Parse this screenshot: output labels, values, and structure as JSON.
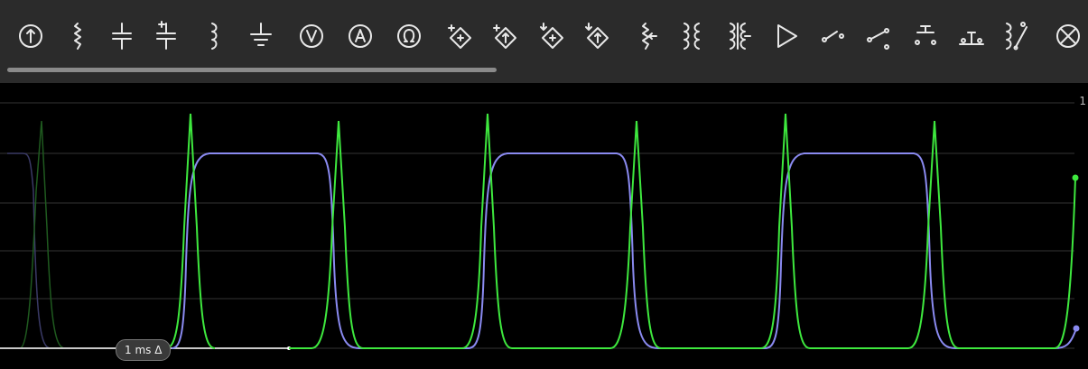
{
  "toolbar": {
    "icons": [
      "current-source-icon",
      "resistor-icon",
      "capacitor-icon",
      "polarized-capacitor-icon",
      "inductor-icon",
      "ground-icon",
      "voltmeter-icon",
      "ammeter-icon",
      "ohmmeter-icon",
      "vcvs-icon",
      "vccs-icon",
      "ccvs-icon",
      "cccs-icon",
      "potentiometer-icon",
      "transformer-icon",
      "transformer-alt-icon",
      "opamp-icon",
      "switch-spst-icon",
      "switch-spdt-icon",
      "pushbutton-no-icon",
      "pushbutton-nc-icon",
      "relay-icon",
      "lamp-icon"
    ]
  },
  "scope": {
    "timebase_label": "1 ms Δ",
    "axis_max_label": "1",
    "colors": {
      "trace_green": "#3ee83e",
      "trace_blue": "#8a8af0",
      "grid": "#3a3a3a"
    }
  }
}
